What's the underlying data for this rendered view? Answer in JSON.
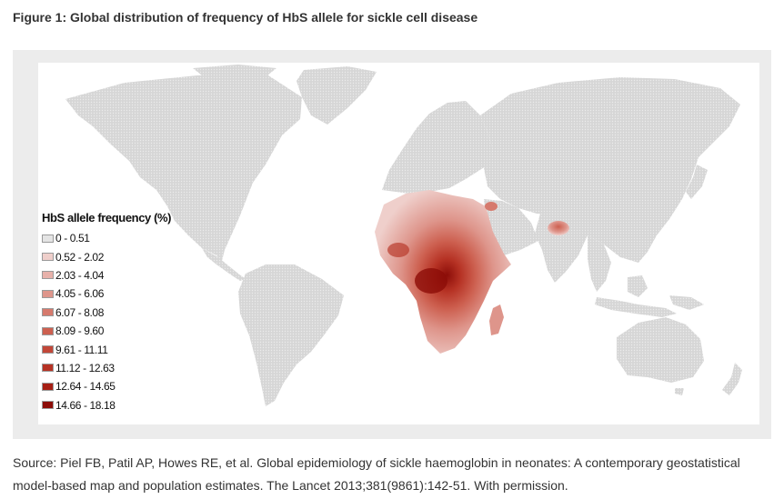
{
  "figure": {
    "title": "Figure 1: Global distribution of frequency of HbS allele for sickle cell disease"
  },
  "legend": {
    "title": "HbS allele frequency (%)",
    "items": [
      {
        "label": "0 - 0.51",
        "color": "#e4e4e4"
      },
      {
        "label": "0.52 - 2.02",
        "color": "#efcfcb"
      },
      {
        "label": "2.03 - 4.04",
        "color": "#e7b1aa"
      },
      {
        "label": "4.05 - 6.06",
        "color": "#de958b"
      },
      {
        "label": "6.07 - 8.08",
        "color": "#d67a6d"
      },
      {
        "label": "8.09 - 9.60",
        "color": "#cd6050"
      },
      {
        "label": "9.61 - 11.11",
        "color": "#c24738"
      },
      {
        "label": "11.12 - 12.63",
        "color": "#b63224"
      },
      {
        "label": "12.64 - 14.65",
        "color": "#a61f14"
      },
      {
        "label": "14.66 - 18.18",
        "color": "#8c0d08"
      }
    ]
  },
  "map_colors": {
    "land": "#dcdcdc",
    "panel_background": "#ffffff",
    "frame_background": "#ececec"
  },
  "source": {
    "text": "Source: Piel FB, Patil AP, Howes RE, et al. Global epidemiology of sickle haemoglobin in neonates: A contemporary geostatistical model-based map and population estimates. The Lancet 2013;381(9861):142-51. With permission."
  }
}
